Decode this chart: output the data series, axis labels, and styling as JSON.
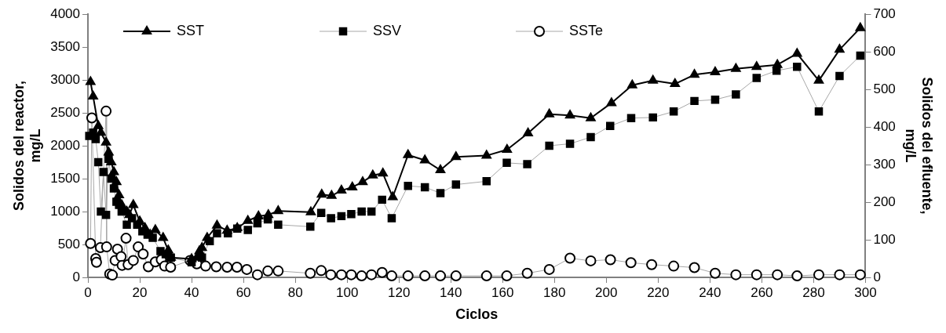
{
  "chart_data": {
    "type": "line",
    "xlabel": "Ciclos",
    "ylabel": "Solidos del reactor, mg/L",
    "y2label": "Solidos del efluente, mg/L",
    "xlim": [
      0,
      300
    ],
    "xticks": [
      0,
      20,
      40,
      60,
      80,
      100,
      120,
      140,
      160,
      180,
      200,
      220,
      240,
      260,
      280,
      300
    ],
    "ylim": [
      0,
      4000
    ],
    "yticks": [
      0,
      500,
      1000,
      1500,
      2000,
      2500,
      3000,
      3500,
      4000
    ],
    "y2lim": [
      0,
      700
    ],
    "y2ticks": [
      0,
      100,
      200,
      300,
      400,
      500,
      600,
      700
    ],
    "grid": false,
    "legend": "top left",
    "line_style": "solid",
    "series": [
      {
        "name": "SST",
        "color": "#000000",
        "marker": "triangle",
        "x": [
          1,
          2,
          4,
          5,
          7,
          8,
          9,
          10,
          11,
          12,
          13,
          15,
          16,
          17.5,
          20,
          22,
          24,
          26,
          29,
          31,
          32,
          40,
          42,
          43,
          44,
          46,
          49.8,
          53.7,
          57.6,
          61.7,
          65.8,
          69.6,
          73.4,
          86,
          90.2,
          94,
          97.8,
          102,
          106,
          109.9,
          113.8,
          117.6,
          123.5,
          130,
          136,
          142,
          153.8,
          161.7,
          169.8,
          178,
          186,
          194,
          202,
          210,
          218,
          226.5,
          234,
          242,
          250,
          258,
          266,
          273.6,
          282,
          290,
          298
        ],
        "values": [
          2970,
          2750,
          2300,
          2200,
          2050,
          1900,
          1750,
          1600,
          1450,
          1250,
          1100,
          1000,
          950,
          1100,
          850,
          750,
          650,
          720,
          600,
          410,
          300,
          280,
          300,
          400,
          450,
          600,
          790,
          710,
          750,
          860,
          930,
          950,
          1010,
          990,
          1260,
          1240,
          1320,
          1370,
          1450,
          1550,
          1580,
          1220,
          1860,
          1780,
          1630,
          1830,
          1850,
          1940,
          2190,
          2480,
          2460,
          2420,
          2650,
          2920,
          2990,
          2940,
          3080,
          3120,
          3170,
          3200,
          3230,
          3400,
          2990,
          3460,
          3790
        ]
      },
      {
        "name": "SSV",
        "color": "#000000",
        "marker": "square",
        "x": [
          0.5,
          2,
          3,
          4,
          5,
          6,
          7,
          8,
          9,
          10,
          11,
          12,
          13,
          15,
          17,
          19,
          21,
          23,
          25,
          28,
          30,
          32,
          40,
          44,
          47,
          49.8,
          54,
          57.6,
          61.7,
          65.4,
          69.4,
          73.4,
          85.8,
          90,
          93.8,
          97.8,
          101.6,
          105.6,
          109.4,
          113.5,
          117.2,
          123.5,
          130,
          136,
          142,
          153.8,
          161.6,
          169.5,
          178,
          186,
          194,
          201.5,
          209.6,
          218,
          226,
          234,
          242,
          250,
          258,
          265.7,
          273.6,
          282,
          290,
          298
        ],
        "values": [
          2150,
          2200,
          2100,
          1750,
          1000,
          1600,
          950,
          1800,
          1500,
          1350,
          1150,
          1100,
          1000,
          800,
          900,
          800,
          700,
          650,
          600,
          400,
          350,
          300,
          230,
          300,
          550,
          670,
          670,
          740,
          720,
          820,
          880,
          800,
          770,
          980,
          900,
          930,
          960,
          1000,
          1000,
          1180,
          900,
          1390,
          1370,
          1280,
          1410,
          1460,
          1740,
          1720,
          2000,
          2030,
          2130,
          2300,
          2420,
          2430,
          2520,
          2680,
          2700,
          2780,
          3030,
          3140,
          3200,
          2520,
          3060,
          3370
        ]
      },
      {
        "name": "SSTe",
        "color": "#000000",
        "marker": "circle",
        "axis": "y2",
        "x": [
          1,
          1.5,
          3,
          3.3,
          4.8,
          7,
          7.2,
          8.4,
          9.4,
          10.5,
          11.4,
          12.8,
          13.2,
          14.7,
          15.5,
          17.5,
          19.4,
          21.3,
          23.3,
          26,
          28.3,
          29.6,
          31.9,
          39.4,
          42,
          45.4,
          49.5,
          53.7,
          57.5,
          61.3,
          65.4,
          69.4,
          73.4,
          85.8,
          90,
          93.7,
          97.8,
          101.6,
          105.6,
          109.4,
          113.5,
          117.2,
          123.5,
          130,
          136,
          142,
          153.8,
          161.6,
          169.5,
          178,
          186,
          194,
          201.6,
          209.5,
          217.5,
          226,
          234,
          242,
          250,
          258,
          266,
          273.6,
          282,
          290,
          298
        ],
        "values": [
          90,
          424,
          50,
          40,
          79,
          442,
          81,
          9,
          6,
          45,
          75,
          55,
          32,
          104,
          34,
          45,
          81,
          62,
          28,
          41,
          47,
          30,
          27,
          45,
          36,
          30,
          28,
          27,
          27,
          21,
          7,
          17,
          17,
          11,
          18,
          7,
          7,
          7,
          4,
          7,
          13,
          4,
          4,
          4,
          4,
          4,
          4,
          4,
          11,
          21,
          51,
          44,
          47,
          39,
          34,
          30,
          26,
          11,
          7,
          7,
          7,
          4,
          7,
          7,
          7
        ]
      }
    ]
  }
}
